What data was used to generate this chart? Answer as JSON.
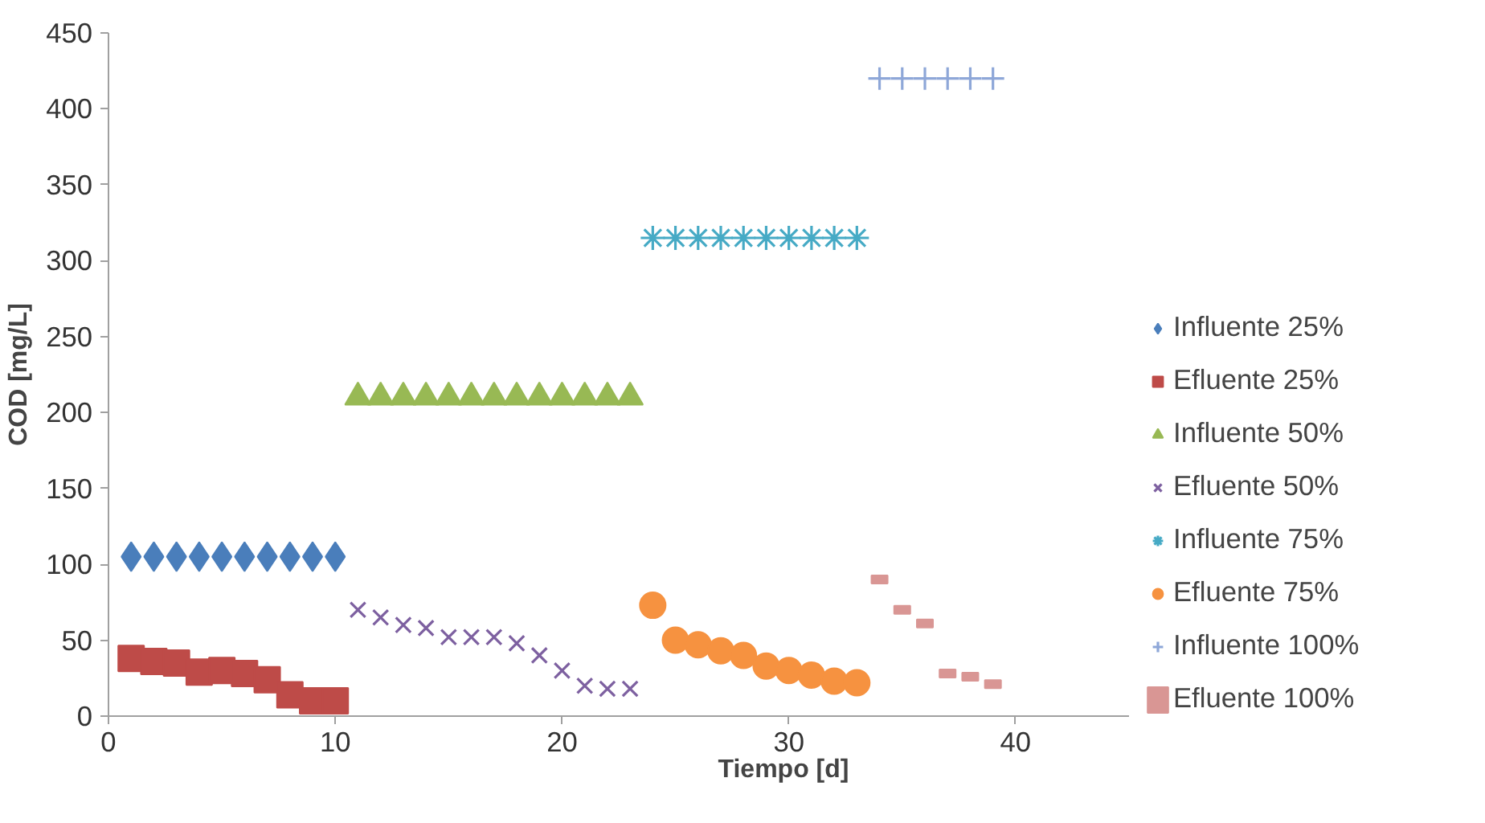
{
  "chart_data": {
    "type": "scatter",
    "xlabel": "Tiempo [d]",
    "ylabel": "COD [mg/L]",
    "xlim": [
      0,
      45
    ],
    "xticks": [
      0,
      10,
      20,
      30,
      40
    ],
    "ylim": [
      0,
      450
    ],
    "yticks": [
      0,
      50,
      100,
      150,
      200,
      250,
      300,
      350,
      400,
      450
    ],
    "grid": false,
    "legend": "right",
    "series": [
      {
        "name": "Influente 25%",
        "color": "#4a7ebb",
        "marker": "diamond",
        "x": [
          1,
          2,
          3,
          4,
          5,
          6,
          7,
          8,
          9,
          10
        ],
        "values": [
          105,
          105,
          105,
          105,
          105,
          105,
          105,
          105,
          105,
          105
        ]
      },
      {
        "name": "Efluente 25%",
        "color": "#be4b48",
        "marker": "square",
        "x": [
          1,
          2,
          3,
          4,
          5,
          6,
          7,
          8,
          9,
          10
        ],
        "values": [
          38,
          36,
          35,
          29,
          30,
          28,
          24,
          14,
          10,
          10
        ]
      },
      {
        "name": "Influente 50%",
        "color": "#98b954",
        "marker": "triangle",
        "x": [
          11,
          12,
          13,
          14,
          15,
          16,
          17,
          18,
          19,
          20,
          21,
          22,
          23
        ],
        "values": [
          210,
          210,
          210,
          210,
          210,
          210,
          210,
          210,
          210,
          210,
          210,
          210,
          210
        ]
      },
      {
        "name": "Efluente 50%",
        "color": "#7d60a0",
        "marker": "x",
        "x": [
          11,
          12,
          13,
          14,
          15,
          16,
          17,
          18,
          19,
          20,
          21,
          22,
          23
        ],
        "values": [
          70,
          65,
          60,
          58,
          52,
          52,
          52,
          48,
          40,
          30,
          20,
          18,
          18
        ]
      },
      {
        "name": "Influente 75%",
        "color": "#46aac5",
        "x": [
          24,
          25,
          26,
          27,
          28,
          29,
          30,
          31,
          32,
          33
        ],
        "values": [
          315,
          315,
          315,
          315,
          315,
          315,
          315,
          315,
          315,
          315
        ]
      },
      {
        "name": "Efluente 75%",
        "color": "#f69240",
        "marker": "circle",
        "x": [
          24,
          25,
          26,
          27,
          28,
          29,
          30,
          31,
          32,
          33
        ],
        "values": [
          73,
          50,
          47,
          43,
          40,
          33,
          30,
          27,
          23,
          22
        ]
      },
      {
        "name": "Influente 100%",
        "color": "#8ea7d8",
        "marker": "cross",
        "x": [
          34,
          35,
          36,
          37,
          38,
          39
        ],
        "values": [
          420,
          420,
          420,
          420,
          420,
          420
        ]
      },
      {
        "name": "Efluente 100%",
        "color": "#d99694",
        "x": [
          34,
          35,
          36,
          37,
          38,
          39
        ],
        "values": [
          90,
          70,
          61,
          28,
          26,
          21
        ]
      }
    ]
  }
}
